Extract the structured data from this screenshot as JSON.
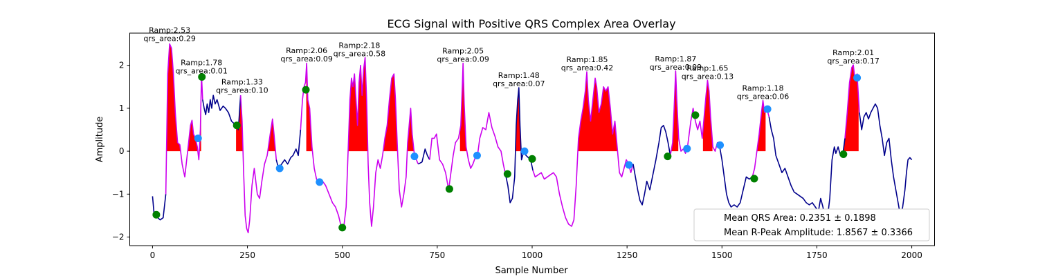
{
  "chart_data": {
    "type": "line",
    "title": "ECG Signal with Positive QRS Complex Area Overlay",
    "xlabel": "Sample Number",
    "ylabel": "Amplitude",
    "xlim": [
      -60,
      2060
    ],
    "ylim": [
      -2.2,
      2.75
    ],
    "x_ticks": [
      0,
      250,
      500,
      750,
      1000,
      1250,
      1500,
      1750,
      2000
    ],
    "y_ticks": [
      -2,
      -1,
      0,
      1,
      2
    ],
    "grid": false,
    "colors": {
      "signal": "#00008b",
      "qrs_segment": "#cc00ee",
      "qrs_fill": "#ff0000",
      "onset_marker": "#008000",
      "offset_marker": "#1e90ff"
    },
    "signal": [
      [
        0,
        -1.05
      ],
      [
        4,
        -1.45
      ],
      [
        8,
        -1.5
      ],
      [
        14,
        -1.55
      ],
      [
        20,
        -1.6
      ],
      [
        28,
        -1.55
      ],
      [
        35,
        -1.0
      ],
      [
        40,
        1.8
      ],
      [
        45,
        2.5
      ],
      [
        50,
        2.4
      ],
      [
        55,
        1.8
      ],
      [
        60,
        0.9
      ],
      [
        66,
        0.2
      ],
      [
        72,
        0.15
      ],
      [
        78,
        -0.3
      ],
      [
        85,
        -0.6
      ],
      [
        90,
        -0.2
      ],
      [
        95,
        0.2
      ],
      [
        100,
        0.6
      ],
      [
        104,
        0.72
      ],
      [
        108,
        0.4
      ],
      [
        113,
        0.3
      ],
      [
        118,
        0.1
      ],
      [
        122,
        -0.2
      ],
      [
        126,
        0.5
      ],
      [
        129,
        1.78
      ],
      [
        132,
        1.2
      ],
      [
        136,
        1.0
      ],
      [
        140,
        0.85
      ],
      [
        144,
        1.1
      ],
      [
        148,
        0.9
      ],
      [
        152,
        1.2
      ],
      [
        156,
        1.0
      ],
      [
        160,
        1.3
      ],
      [
        165,
        1.1
      ],
      [
        170,
        1.2
      ],
      [
        178,
        0.95
      ],
      [
        186,
        1.05
      ],
      [
        192,
        1.0
      ],
      [
        200,
        0.9
      ],
      [
        208,
        0.7
      ],
      [
        214,
        0.65
      ],
      [
        220,
        0.6
      ],
      [
        226,
        0.5
      ],
      [
        232,
        1.3
      ],
      [
        236,
        0.7
      ],
      [
        240,
        -0.5
      ],
      [
        244,
        -1.5
      ],
      [
        248,
        -1.8
      ],
      [
        252,
        -1.9
      ],
      [
        256,
        -1.6
      ],
      [
        262,
        -0.8
      ],
      [
        268,
        -0.4
      ],
      [
        276,
        -1.0
      ],
      [
        282,
        -1.1
      ],
      [
        288,
        -0.7
      ],
      [
        295,
        -0.3
      ],
      [
        302,
        -0.1
      ],
      [
        310,
        0.4
      ],
      [
        316,
        0.75
      ],
      [
        320,
        0.4
      ],
      [
        326,
        -0.2
      ],
      [
        332,
        -0.4
      ],
      [
        340,
        -0.3
      ],
      [
        348,
        -0.2
      ],
      [
        356,
        -0.3
      ],
      [
        364,
        -0.15
      ],
      [
        370,
        -0.1
      ],
      [
        378,
        0.05
      ],
      [
        384,
        -0.1
      ],
      [
        390,
        0.5
      ],
      [
        395,
        1.2
      ],
      [
        399,
        1.5
      ],
      [
        403,
        1.6
      ],
      [
        406,
        2.05
      ],
      [
        409,
        1.2
      ],
      [
        414,
        1.0
      ],
      [
        420,
        0.1
      ],
      [
        426,
        -0.4
      ],
      [
        432,
        -0.65
      ],
      [
        440,
        -0.75
      ],
      [
        448,
        -0.7
      ],
      [
        456,
        -0.8
      ],
      [
        465,
        -1.0
      ],
      [
        474,
        -1.2
      ],
      [
        482,
        -1.3
      ],
      [
        490,
        -1.5
      ],
      [
        498,
        -1.8
      ],
      [
        504,
        -1.75
      ],
      [
        510,
        -1.3
      ],
      [
        516,
        0.2
      ],
      [
        520,
        1.2
      ],
      [
        524,
        1.7
      ],
      [
        528,
        1.5
      ],
      [
        532,
        1.8
      ],
      [
        536,
        1.2
      ],
      [
        540,
        0.6
      ],
      [
        544,
        1.6
      ],
      [
        548,
        2.0
      ],
      [
        552,
        1.3
      ],
      [
        556,
        1.9
      ],
      [
        560,
        2.18
      ],
      [
        564,
        1.2
      ],
      [
        568,
        -0.3
      ],
      [
        572,
        -1.2
      ],
      [
        577,
        -1.75
      ],
      [
        582,
        -1.3
      ],
      [
        588,
        -0.5
      ],
      [
        594,
        -0.2
      ],
      [
        600,
        -0.4
      ],
      [
        606,
        -0.1
      ],
      [
        612,
        0.3
      ],
      [
        618,
        0.6
      ],
      [
        624,
        1.2
      ],
      [
        630,
        1.7
      ],
      [
        636,
        1.8
      ],
      [
        640,
        1.2
      ],
      [
        645,
        0.1
      ],
      [
        650,
        -0.9
      ],
      [
        656,
        -1.3
      ],
      [
        662,
        -1.0
      ],
      [
        668,
        -0.6
      ],
      [
        672,
        0.2
      ],
      [
        676,
        0.6
      ],
      [
        680,
        1.0
      ],
      [
        684,
        0.4
      ],
      [
        690,
        -0.1
      ],
      [
        700,
        -0.3
      ],
      [
        710,
        -0.25
      ],
      [
        718,
        0.05
      ],
      [
        724,
        -0.1
      ],
      [
        730,
        -0.2
      ],
      [
        736,
        0.3
      ],
      [
        742,
        0.3
      ],
      [
        748,
        0.4
      ],
      [
        756,
        -0.2
      ],
      [
        764,
        -0.3
      ],
      [
        772,
        -0.5
      ],
      [
        780,
        -0.9
      ],
      [
        786,
        -0.5
      ],
      [
        792,
        -0.1
      ],
      [
        798,
        0.2
      ],
      [
        806,
        0.3
      ],
      [
        812,
        0.6
      ],
      [
        816,
        1.5
      ],
      [
        818,
        2.05
      ],
      [
        821,
        1.1
      ],
      [
        826,
        0.1
      ],
      [
        832,
        -0.2
      ],
      [
        838,
        -0.4
      ],
      [
        844,
        -0.3
      ],
      [
        850,
        -0.15
      ],
      [
        856,
        -0.1
      ],
      [
        862,
        0.3
      ],
      [
        870,
        0.55
      ],
      [
        878,
        0.5
      ],
      [
        886,
        0.9
      ],
      [
        894,
        0.55
      ],
      [
        902,
        0.35
      ],
      [
        910,
        0.1
      ],
      [
        918,
        0.0
      ],
      [
        924,
        -0.3
      ],
      [
        930,
        -0.55
      ],
      [
        936,
        -0.8
      ],
      [
        942,
        -1.2
      ],
      [
        948,
        -1.1
      ],
      [
        954,
        -0.6
      ],
      [
        958,
        0.6
      ],
      [
        962,
        1.2
      ],
      [
        965,
        1.48
      ],
      [
        968,
        0.6
      ],
      [
        972,
        -0.2
      ],
      [
        978,
        0.0
      ],
      [
        984,
        -0.1
      ],
      [
        990,
        -0.15
      ],
      [
        996,
        -0.2
      ],
      [
        1002,
        -0.45
      ],
      [
        1008,
        -0.6
      ],
      [
        1016,
        -0.55
      ],
      [
        1024,
        -0.5
      ],
      [
        1032,
        -0.65
      ],
      [
        1040,
        -0.6
      ],
      [
        1048,
        -0.55
      ],
      [
        1056,
        -0.5
      ],
      [
        1064,
        -0.6
      ],
      [
        1072,
        -1.0
      ],
      [
        1080,
        -1.3
      ],
      [
        1088,
        -1.55
      ],
      [
        1096,
        -1.7
      ],
      [
        1104,
        -1.75
      ],
      [
        1110,
        -1.6
      ],
      [
        1116,
        -0.8
      ],
      [
        1122,
        0.3
      ],
      [
        1128,
        0.7
      ],
      [
        1134,
        1.0
      ],
      [
        1140,
        1.4
      ],
      [
        1144,
        1.85
      ],
      [
        1148,
        1.2
      ],
      [
        1154,
        0.7
      ],
      [
        1160,
        1.2
      ],
      [
        1166,
        1.7
      ],
      [
        1170,
        1.5
      ],
      [
        1176,
        0.9
      ],
      [
        1182,
        1.1
      ],
      [
        1188,
        1.5
      ],
      [
        1194,
        1.4
      ],
      [
        1200,
        1.5
      ],
      [
        1206,
        1.0
      ],
      [
        1212,
        0.4
      ],
      [
        1218,
        0.7
      ],
      [
        1224,
        0.1
      ],
      [
        1230,
        -0.5
      ],
      [
        1236,
        -0.6
      ],
      [
        1242,
        -0.4
      ],
      [
        1248,
        -0.2
      ],
      [
        1254,
        -0.3
      ],
      [
        1260,
        -0.5
      ],
      [
        1266,
        -0.3
      ],
      [
        1272,
        -0.6
      ],
      [
        1278,
        -0.9
      ],
      [
        1284,
        -1.15
      ],
      [
        1290,
        -1.25
      ],
      [
        1296,
        -1.0
      ],
      [
        1302,
        -0.7
      ],
      [
        1310,
        -0.9
      ],
      [
        1318,
        -0.55
      ],
      [
        1326,
        -0.2
      ],
      [
        1334,
        0.2
      ],
      [
        1340,
        0.55
      ],
      [
        1346,
        0.6
      ],
      [
        1352,
        0.45
      ],
      [
        1358,
        0.2
      ],
      [
        1364,
        -0.1
      ],
      [
        1370,
        0.2
      ],
      [
        1374,
        1.0
      ],
      [
        1378,
        1.87
      ],
      [
        1381,
        1.2
      ],
      [
        1386,
        0.3
      ],
      [
        1392,
        0.0
      ],
      [
        1398,
        0.05
      ],
      [
        1404,
        -0.05
      ],
      [
        1410,
        0.15
      ],
      [
        1418,
        0.7
      ],
      [
        1424,
        1.0
      ],
      [
        1430,
        0.7
      ],
      [
        1436,
        0.5
      ],
      [
        1442,
        0.7
      ],
      [
        1448,
        0.3
      ],
      [
        1454,
        0.9
      ],
      [
        1458,
        1.3
      ],
      [
        1462,
        1.65
      ],
      [
        1466,
        1.4
      ],
      [
        1470,
        0.8
      ],
      [
        1476,
        0.1
      ],
      [
        1482,
        0.0
      ],
      [
        1488,
        0.2
      ],
      [
        1494,
        0.1
      ],
      [
        1500,
        -0.2
      ],
      [
        1506,
        -0.6
      ],
      [
        1512,
        -1.0
      ],
      [
        1518,
        -1.2
      ],
      [
        1524,
        -1.3
      ],
      [
        1532,
        -1.25
      ],
      [
        1540,
        -1.3
      ],
      [
        1548,
        -1.2
      ],
      [
        1556,
        -0.9
      ],
      [
        1564,
        -0.6
      ],
      [
        1572,
        -0.65
      ],
      [
        1580,
        -0.6
      ],
      [
        1586,
        -0.4
      ],
      [
        1592,
        0.0
      ],
      [
        1598,
        0.4
      ],
      [
        1604,
        0.9
      ],
      [
        1608,
        1.18
      ],
      [
        1612,
        0.9
      ],
      [
        1618,
        1.0
      ],
      [
        1624,
        0.8
      ],
      [
        1630,
        0.5
      ],
      [
        1636,
        0.3
      ],
      [
        1642,
        -0.1
      ],
      [
        1650,
        -0.3
      ],
      [
        1658,
        -0.5
      ],
      [
        1666,
        -0.4
      ],
      [
        1674,
        -0.6
      ],
      [
        1682,
        -0.8
      ],
      [
        1690,
        -0.95
      ],
      [
        1698,
        -1.0
      ],
      [
        1706,
        -1.05
      ],
      [
        1714,
        -1.1
      ],
      [
        1722,
        -1.2
      ],
      [
        1730,
        -1.25
      ],
      [
        1738,
        -1.2
      ],
      [
        1746,
        -1.3
      ],
      [
        1754,
        -1.4
      ],
      [
        1760,
        -1.1
      ],
      [
        1766,
        -1.3
      ],
      [
        1772,
        -1.6
      ],
      [
        1778,
        -1.55
      ],
      [
        1784,
        -1.1
      ],
      [
        1790,
        -0.2
      ],
      [
        1796,
        0.1
      ],
      [
        1800,
        -0.05
      ],
      [
        1806,
        0.1
      ],
      [
        1812,
        -0.1
      ],
      [
        1818,
        -0.1
      ],
      [
        1824,
        0.3
      ],
      [
        1830,
        0.9
      ],
      [
        1836,
        1.6
      ],
      [
        1842,
        1.95
      ],
      [
        1846,
        2.01
      ],
      [
        1850,
        1.7
      ],
      [
        1856,
        1.8
      ],
      [
        1862,
        0.9
      ],
      [
        1868,
        0.5
      ],
      [
        1874,
        0.8
      ],
      [
        1880,
        0.9
      ],
      [
        1886,
        0.75
      ],
      [
        1892,
        0.9
      ],
      [
        1898,
        1.0
      ],
      [
        1904,
        1.1
      ],
      [
        1910,
        1.0
      ],
      [
        1916,
        0.6
      ],
      [
        1922,
        0.3
      ],
      [
        1928,
        -0.1
      ],
      [
        1934,
        0.2
      ],
      [
        1940,
        0.3
      ],
      [
        1946,
        -0.2
      ],
      [
        1952,
        -0.6
      ],
      [
        1958,
        -0.9
      ],
      [
        1964,
        -1.2
      ],
      [
        1970,
        -1.5
      ],
      [
        1976,
        -1.3
      ],
      [
        1982,
        -0.9
      ],
      [
        1986,
        -0.5
      ],
      [
        1990,
        -0.2
      ],
      [
        1995,
        -0.15
      ],
      [
        2000,
        -0.2
      ]
    ],
    "qrs_segments": [
      [
        35,
        130
      ],
      [
        230,
        325
      ],
      [
        390,
        690
      ],
      [
        725,
        925
      ],
      [
        1000,
        1260
      ],
      [
        1360,
        1490
      ],
      [
        1580,
        1620
      ],
      [
        1820,
        1860
      ]
    ],
    "qrs_fill_regions": [
      [
        35,
        128
      ],
      [
        220,
        330
      ],
      [
        405,
        420
      ],
      [
        515,
        690
      ],
      [
        810,
        830
      ],
      [
        955,
        975
      ],
      [
        1000,
        1230
      ],
      [
        1360,
        1385
      ],
      [
        1450,
        1475
      ],
      [
        1590,
        1615
      ],
      [
        1820,
        1860
      ]
    ],
    "onset_markers": [
      [
        10,
        -1.48
      ],
      [
        130,
        1.73
      ],
      [
        222,
        0.6
      ],
      [
        404,
        1.43
      ],
      [
        500,
        -1.78
      ],
      [
        782,
        -0.88
      ],
      [
        935,
        -0.53
      ],
      [
        1000,
        -0.18
      ],
      [
        1357,
        -0.12
      ],
      [
        1430,
        0.84
      ],
      [
        1585,
        -0.64
      ],
      [
        1820,
        -0.07
      ]
    ],
    "offset_markers": [
      [
        120,
        0.3
      ],
      [
        335,
        -0.4
      ],
      [
        440,
        -0.72
      ],
      [
        690,
        -0.12
      ],
      [
        855,
        -0.1
      ],
      [
        980,
        0.0
      ],
      [
        1255,
        -0.32
      ],
      [
        1408,
        0.06
      ],
      [
        1495,
        0.14
      ],
      [
        1620,
        0.98
      ],
      [
        1856,
        1.71
      ]
    ],
    "annotations": [
      {
        "x": 45,
        "y": 2.53,
        "ramp": "Ramp:2.53",
        "area": "qrs_area:0.29"
      },
      {
        "x": 129,
        "y": 1.78,
        "ramp": "Ramp:1.78",
        "area": "qrs_area:0.01"
      },
      {
        "x": 236,
        "y": 1.33,
        "ramp": "Ramp:1.33",
        "area": "qrs_area:0.10"
      },
      {
        "x": 406,
        "y": 2.06,
        "ramp": "Ramp:2.06",
        "area": "qrs_area:0.09"
      },
      {
        "x": 545,
        "y": 2.18,
        "ramp": "Ramp:2.18",
        "area": "qrs_area:0.58"
      },
      {
        "x": 818,
        "y": 2.05,
        "ramp": "Ramp:2.05",
        "area": "qrs_area:0.09"
      },
      {
        "x": 965,
        "y": 1.48,
        "ramp": "Ramp:1.48",
        "area": "qrs_area:0.07"
      },
      {
        "x": 1145,
        "y": 1.85,
        "ramp": "Ramp:1.85",
        "area": "qrs_area:0.42"
      },
      {
        "x": 1378,
        "y": 1.87,
        "ramp": "Ramp:1.87",
        "area": "qrs_area:0.09"
      },
      {
        "x": 1462,
        "y": 1.65,
        "ramp": "Ramp:1.65",
        "area": "qrs_area:0.13"
      },
      {
        "x": 1608,
        "y": 1.18,
        "ramp": "Ramp:1.18",
        "area": "qrs_area:0.06"
      },
      {
        "x": 1846,
        "y": 2.01,
        "ramp": "Ramp:2.01",
        "area": "qrs_area:0.17"
      }
    ],
    "legend": {
      "placement": "lower-right",
      "entries": [
        "Mean QRS Area: 0.2351 ± 0.1898",
        "Mean R-Peak Amplitude: 1.8567 ± 0.3366"
      ]
    }
  }
}
